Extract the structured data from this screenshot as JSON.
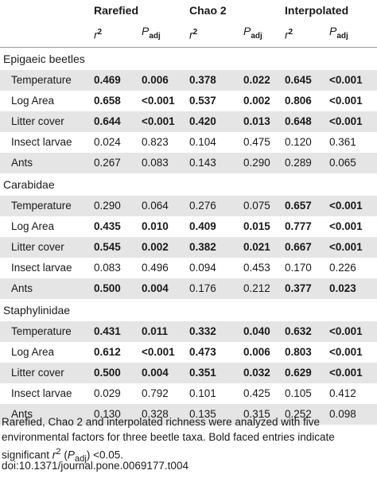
{
  "header": {
    "groups": [
      "Rarefied",
      "Chao 2",
      "Interpolated"
    ],
    "sub_r2": "r",
    "sub_r2_sup": "2",
    "sub_p": "P",
    "sub_p_sub": "adj"
  },
  "sections": [
    {
      "title": "Epigaeic beetles",
      "rows": [
        {
          "label": "Temperature",
          "cells": [
            [
              "0.469",
              true
            ],
            [
              "0.006",
              true
            ],
            [
              "0.378",
              true
            ],
            [
              "0.022",
              true
            ],
            [
              "0.645",
              true
            ],
            [
              "<0.001",
              true
            ]
          ]
        },
        {
          "label": "Log Area",
          "cells": [
            [
              "0.658",
              true
            ],
            [
              "<0.001",
              true
            ],
            [
              "0.537",
              true
            ],
            [
              "0.002",
              true
            ],
            [
              "0.806",
              true
            ],
            [
              "<0.001",
              true
            ]
          ]
        },
        {
          "label": "Litter cover",
          "cells": [
            [
              "0.644",
              true
            ],
            [
              "<0.001",
              true
            ],
            [
              "0.420",
              true
            ],
            [
              "0.013",
              true
            ],
            [
              "0.648",
              true
            ],
            [
              "<0.001",
              true
            ]
          ]
        },
        {
          "label": "Insect larvae",
          "cells": [
            [
              "0.024",
              false
            ],
            [
              "0.823",
              false
            ],
            [
              "0.104",
              false
            ],
            [
              "0.475",
              false
            ],
            [
              "0.120",
              false
            ],
            [
              "0.361",
              false
            ]
          ]
        },
        {
          "label": "Ants",
          "cells": [
            [
              "0.267",
              false
            ],
            [
              "0.083",
              false
            ],
            [
              "0.143",
              false
            ],
            [
              "0.290",
              false
            ],
            [
              "0.289",
              false
            ],
            [
              "0.065",
              false
            ]
          ]
        }
      ]
    },
    {
      "title": "Carabidae",
      "rows": [
        {
          "label": "Temperature",
          "cells": [
            [
              "0.290",
              false
            ],
            [
              "0.064",
              false
            ],
            [
              "0.276",
              false
            ],
            [
              "0.075",
              false
            ],
            [
              "0.657",
              true
            ],
            [
              "<0.001",
              true
            ]
          ]
        },
        {
          "label": "Log Area",
          "cells": [
            [
              "0.435",
              true
            ],
            [
              "0.010",
              true
            ],
            [
              "0.409",
              true
            ],
            [
              "0.015",
              true
            ],
            [
              "0.777",
              true
            ],
            [
              "<0.001",
              true
            ]
          ]
        },
        {
          "label": "Litter cover",
          "cells": [
            [
              "0.545",
              true
            ],
            [
              "0.002",
              true
            ],
            [
              "0.382",
              true
            ],
            [
              "0.021",
              true
            ],
            [
              "0.667",
              true
            ],
            [
              "<0.001",
              true
            ]
          ]
        },
        {
          "label": "Insect larvae",
          "cells": [
            [
              "0.083",
              false
            ],
            [
              "0.496",
              false
            ],
            [
              "0.094",
              false
            ],
            [
              "0.453",
              false
            ],
            [
              "0.170",
              false
            ],
            [
              "0.226",
              false
            ]
          ]
        },
        {
          "label": "Ants",
          "cells": [
            [
              "0.500",
              true
            ],
            [
              "0.004",
              true
            ],
            [
              "0.176",
              false
            ],
            [
              "0.212",
              false
            ],
            [
              "0.377",
              true
            ],
            [
              "0.023",
              true
            ]
          ]
        }
      ]
    },
    {
      "title": "Staphylinidae",
      "rows": [
        {
          "label": "Temperature",
          "cells": [
            [
              "0.431",
              true
            ],
            [
              "0.011",
              true
            ],
            [
              "0.332",
              true
            ],
            [
              "0.040",
              true
            ],
            [
              "0.632",
              true
            ],
            [
              "<0.001",
              true
            ]
          ]
        },
        {
          "label": "Log Area",
          "cells": [
            [
              "0.612",
              true
            ],
            [
              "<0.001",
              true
            ],
            [
              "0.473",
              true
            ],
            [
              "0.006",
              true
            ],
            [
              "0.803",
              true
            ],
            [
              "<0.001",
              true
            ]
          ]
        },
        {
          "label": "Litter cover",
          "cells": [
            [
              "0.500",
              true
            ],
            [
              "0.004",
              true
            ],
            [
              "0.351",
              true
            ],
            [
              "0.032",
              true
            ],
            [
              "0.629",
              true
            ],
            [
              "<0.001",
              true
            ]
          ]
        },
        {
          "label": "Insect larvae",
          "cells": [
            [
              "0.029",
              false
            ],
            [
              "0.792",
              false
            ],
            [
              "0.101",
              false
            ],
            [
              "0.425",
              false
            ],
            [
              "0.105",
              false
            ],
            [
              "0.412",
              false
            ]
          ]
        },
        {
          "label": "Ants",
          "cells": [
            [
              "0.130",
              false
            ],
            [
              "0.328",
              false
            ],
            [
              "0.135",
              false
            ],
            [
              "0.315",
              false
            ],
            [
              "0.252",
              false
            ],
            [
              "0.098",
              false
            ]
          ]
        }
      ]
    }
  ],
  "footnote": {
    "line_a": "Rarefied, Chao 2 and interpolated richness were analyzed with five environmental factors for three beetle taxa. Bold faced entries indicate significant ",
    "r": "r",
    "r_sup": "2",
    "paren_open": " (",
    "p": "P",
    "p_sub": "adj",
    "tail": ") <0.05.",
    "doi": "doi:10.1371/journal.pone.0069177.t004"
  }
}
